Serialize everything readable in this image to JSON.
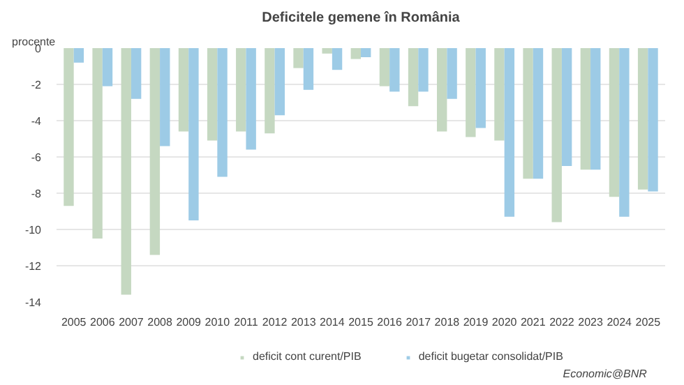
{
  "chart_data": {
    "type": "bar",
    "title": "Deficitele gemene în România",
    "ylabel": "procente",
    "categories": [
      "2005",
      "2006",
      "2007",
      "2008",
      "2009",
      "2010",
      "2011",
      "2012",
      "2013",
      "2014",
      "2015",
      "2016",
      "2017",
      "2018",
      "2019",
      "2020",
      "2021",
      "2022",
      "2023",
      "2024",
      "2025"
    ],
    "series": [
      {
        "name": "deficit cont curent/PIB",
        "color": "#c5d8c1",
        "values": [
          -8.7,
          -10.5,
          -13.6,
          -11.4,
          -4.6,
          -5.1,
          -4.6,
          -4.7,
          -1.1,
          -0.3,
          -0.6,
          -2.1,
          -3.2,
          -4.6,
          -4.9,
          -5.1,
          -7.2,
          -9.6,
          -6.7,
          -8.2,
          -7.8
        ]
      },
      {
        "name": "deficit bugetar consolidat/PIB",
        "color": "#9dcbe6",
        "values": [
          -0.8,
          -2.1,
          -2.8,
          -5.4,
          -9.5,
          -7.1,
          -5.6,
          -3.7,
          -2.3,
          -1.2,
          -0.5,
          -2.4,
          -2.4,
          -2.8,
          -4.4,
          -9.3,
          -7.2,
          -6.5,
          -6.7,
          -9.3,
          -7.9
        ]
      }
    ],
    "ylim": [
      -14,
      0
    ],
    "yticks": [
      -14,
      -12,
      -10,
      -8,
      -6,
      -4,
      -2,
      0
    ],
    "grid": "y",
    "legend": "bottom",
    "annotations": [
      "Economic@BNR"
    ]
  }
}
